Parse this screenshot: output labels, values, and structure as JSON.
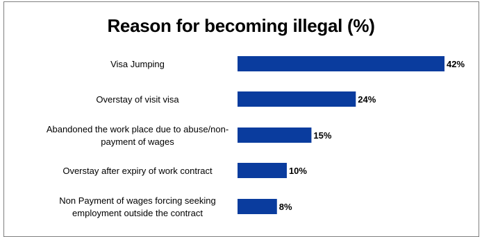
{
  "chart_data": {
    "type": "bar",
    "orientation": "horizontal",
    "title": "Reason for becoming illegal (%)",
    "categories": [
      [
        "Visa Jumping"
      ],
      [
        "Overstay of visit visa"
      ],
      [
        "Abandoned the work place due to abuse/non-",
        "payment of wages"
      ],
      [
        "Overstay after expiry of work contract"
      ],
      [
        "Non Payment of wages forcing seeking",
        "employment outside the contract"
      ]
    ],
    "values": [
      42,
      24,
      15,
      10,
      8
    ],
    "data_labels": [
      "42%",
      "24%",
      "15%",
      "10%",
      "8%"
    ],
    "xlim": [
      0,
      42
    ],
    "grid": false,
    "bar_color": "#0a3c9e"
  }
}
